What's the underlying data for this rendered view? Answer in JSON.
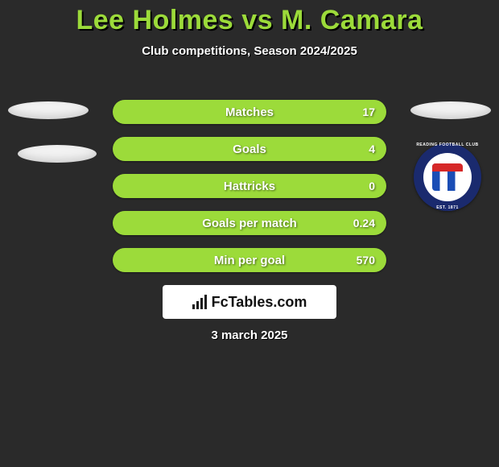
{
  "title": "Lee Holmes vs M. Camara",
  "subtitle": "Club competitions, Season 2024/2025",
  "colors": {
    "background": "#2a2a2a",
    "accent": "#9cdb3a",
    "text": "#ffffff",
    "titleShadow": "#000000",
    "ellipse": "#f2f2f2",
    "logoBoxBg": "#ffffff",
    "logoText": "#111111"
  },
  "stats": [
    {
      "label": "Matches",
      "value_right": "17"
    },
    {
      "label": "Goals",
      "value_right": "4"
    },
    {
      "label": "Hattricks",
      "value_right": "0"
    },
    {
      "label": "Goals per match",
      "value_right": "0.24"
    },
    {
      "label": "Min per goal",
      "value_right": "570"
    }
  ],
  "crest": {
    "ring_top": "READING FOOTBALL CLUB",
    "ring_bottom": "EST. 1871",
    "outer_color": "#1a2a6e",
    "inner_color": "#ffffff",
    "stripe_blue": "#1a4db5",
    "stripe_red": "#d62828"
  },
  "site_logo": {
    "text": "FcTables.com"
  },
  "date": "3 march 2025"
}
